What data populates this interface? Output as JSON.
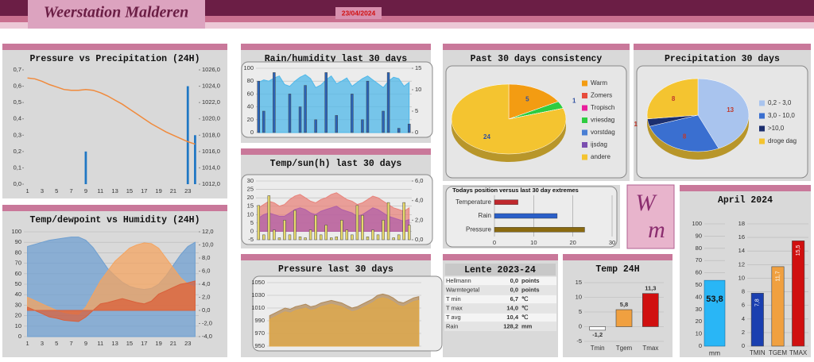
{
  "header": {
    "title": "Weerstation Malderen",
    "date": "23/04/2024"
  },
  "logo": [
    "W",
    "m"
  ],
  "table": {
    "title": "Lente 2023-24",
    "rows": [
      [
        "Hellmann",
        "0,0",
        "points"
      ],
      [
        "Warmtegetal",
        "0,0",
        "points"
      ],
      [
        "T min",
        "6,7",
        "℃"
      ],
      [
        "T max",
        "14,0",
        "℃"
      ],
      [
        "T avg",
        "10,4",
        "℃"
      ],
      [
        "Rain",
        "128,2",
        "mm"
      ]
    ]
  },
  "chart_data": [
    {
      "type": "combo",
      "title": "Pressure vs Precipitation (24H)",
      "categories": [
        1,
        null,
        3,
        null,
        5,
        null,
        7,
        null,
        9,
        null,
        11,
        null,
        13,
        null,
        15,
        null,
        17,
        null,
        19,
        null,
        21,
        null,
        23,
        null
      ],
      "series": [
        {
          "kind": "bar",
          "color": "#1f77c4",
          "values": [
            0,
            0,
            0,
            0,
            0,
            0,
            0,
            0,
            0.2,
            0,
            0,
            0,
            0,
            0,
            0,
            0,
            0,
            0,
            0,
            0,
            0,
            0,
            0.6,
            0.3
          ]
        },
        {
          "kind": "line",
          "axis": "y2",
          "color": "#f08a3c",
          "values": [
            1025.0,
            1024.9,
            1024.6,
            1024.2,
            1023.9,
            1023.6,
            1023.5,
            1023.5,
            1023.6,
            1023.5,
            1023.2,
            1022.8,
            1022.3,
            1021.8,
            1021.2,
            1020.6,
            1020.0,
            1019.4,
            1018.9,
            1018.4,
            1018.0,
            1017.6,
            1017.2,
            1016.9
          ]
        }
      ],
      "ylim": [
        0,
        0.7
      ],
      "yticks": [
        {
          "value": 0,
          "label": "0,0"
        },
        {
          "value": 0.1,
          "label": "0,1"
        },
        {
          "value": 0.2,
          "label": "0,2"
        },
        {
          "value": 0.3,
          "label": "0,3"
        },
        {
          "value": 0.4,
          "label": "0,4"
        },
        {
          "value": 0.5,
          "label": "0,5"
        },
        {
          "value": 0.6,
          "label": "0,6"
        },
        {
          "value": 0.7,
          "label": "0,7"
        }
      ],
      "y2lim": [
        1012,
        1026
      ],
      "y2ticks": [
        {
          "value": 1012,
          "label": "1012,0"
        },
        {
          "value": 1014,
          "label": "1014,0"
        },
        {
          "value": 1016,
          "label": "1016,0"
        },
        {
          "value": 1018,
          "label": "1018,0"
        },
        {
          "value": 1020,
          "label": "1020,0"
        },
        {
          "value": 1022,
          "label": "1022,0"
        },
        {
          "value": 1024,
          "label": "1024,0"
        },
        {
          "value": 1026,
          "label": "1026,0"
        }
      ],
      "grid": false
    },
    {
      "type": "combo",
      "title": "Temp/dewpoint vs Humidity (24H)",
      "categories": [
        1,
        null,
        3,
        null,
        5,
        null,
        7,
        null,
        9,
        null,
        11,
        null,
        13,
        null,
        15,
        null,
        17,
        null,
        19,
        null,
        21,
        null,
        23,
        null
      ],
      "series": [
        {
          "kind": "area",
          "color": "#6f9fd0",
          "values": [
            86,
            88,
            90,
            92,
            93,
            94,
            95,
            95,
            92,
            85,
            75,
            65,
            58,
            52,
            48,
            46,
            45,
            46,
            50,
            58,
            68,
            78,
            86,
            90
          ]
        },
        {
          "kind": "area",
          "axis": "y2",
          "color": "#f4a460",
          "values": [
            2,
            1.5,
            1,
            0.5,
            0,
            -0.3,
            -0.5,
            -0.6,
            0.5,
            2.5,
            4.5,
            6,
            7.5,
            8.5,
            9.5,
            10,
            10.3,
            10.2,
            9.5,
            8,
            6.5,
            5,
            4,
            3.5
          ]
        },
        {
          "kind": "area",
          "axis": "y2",
          "color": "#d9603b",
          "values": [
            0.5,
            0,
            -0.5,
            -1,
            -1.2,
            -1.5,
            -1.6,
            -1.7,
            -1,
            0,
            1,
            1.2,
            1.5,
            1.8,
            1.5,
            1.2,
            1,
            1.4,
            2.5,
            3,
            3.5,
            4,
            4.2,
            4.5
          ]
        }
      ],
      "ylim": [
        0,
        100
      ],
      "yticks": [
        0,
        10,
        20,
        30,
        40,
        50,
        60,
        70,
        80,
        90,
        100
      ],
      "y2lim": [
        -4,
        12
      ],
      "y2ticks": [
        {
          "value": -4,
          "label": "-4,0"
        },
        {
          "value": -2,
          "label": "-2,0"
        },
        {
          "value": 0,
          "label": "0,0"
        },
        {
          "value": 2,
          "label": "2,0"
        },
        {
          "value": 4,
          "label": "4,0"
        },
        {
          "value": 6,
          "label": "6,0"
        },
        {
          "value": 8,
          "label": "8,0"
        },
        {
          "value": 10,
          "label": "10,0"
        },
        {
          "value": 12,
          "label": "12,0"
        }
      ],
      "grid": true
    },
    {
      "type": "combo",
      "title": "Rain/humidity last 30 days",
      "series": [
        {
          "kind": "area",
          "color": "#4fb8ea",
          "values": [
            78,
            82,
            80,
            85,
            88,
            75,
            72,
            80,
            86,
            90,
            84,
            70,
            74,
            82,
            88,
            76,
            80,
            85,
            72,
            78,
            84,
            88,
            82,
            76,
            70,
            80,
            86,
            84,
            72,
            78
          ]
        },
        {
          "kind": "bar",
          "axis": "y2",
          "color": "#2a63b8",
          "values": [
            12,
            5,
            0,
            14,
            0,
            0,
            9,
            0,
            6,
            11,
            0,
            3,
            0,
            14,
            0,
            4,
            0,
            0,
            9,
            0,
            3,
            12,
            0,
            0,
            5,
            14,
            0,
            1,
            0,
            2
          ]
        }
      ],
      "ylim": [
        0,
        100
      ],
      "yticks": [
        0,
        20,
        40,
        60,
        80,
        100
      ],
      "y2lim": [
        0,
        15
      ],
      "y2ticks": [
        0,
        5,
        10,
        15
      ],
      "grid": true
    },
    {
      "type": "combo",
      "title": "Temp/sun(h) last 30 days",
      "series": [
        {
          "kind": "area",
          "color": "#e8847c",
          "values": [
            14,
            16,
            18,
            17,
            15,
            16,
            19,
            21,
            22,
            20,
            18,
            17,
            19,
            20,
            22,
            23,
            21,
            19,
            18,
            16,
            17,
            19,
            21,
            20,
            18,
            16,
            14,
            13,
            12,
            14
          ]
        },
        {
          "kind": "area",
          "color": "#b05fa8",
          "values": [
            8,
            10,
            11,
            10,
            9,
            9,
            11,
            13,
            14,
            13,
            11,
            10,
            12,
            13,
            14,
            15,
            13,
            12,
            11,
            9,
            10,
            12,
            14,
            13,
            11,
            9,
            8,
            7,
            6,
            7
          ]
        },
        {
          "kind": "bar",
          "axis": "y2",
          "color": "#e8d96b",
          "values": [
            3.5,
            0.5,
            4.5,
            1,
            0.2,
            2,
            0.5,
            3,
            0.3,
            0.2,
            1,
            2.5,
            0.5,
            1.5,
            0.2,
            0.3,
            2,
            1,
            0.5,
            3.5,
            2.5,
            0.3,
            1,
            0.5,
            2,
            3.8,
            0.2,
            0.5,
            3.8,
            1.5
          ]
        }
      ],
      "ylim": [
        -5,
        30
      ],
      "yticks": [
        -5,
        0,
        5,
        10,
        15,
        20,
        25,
        30
      ],
      "y2lim": [
        0,
        6
      ],
      "y2ticks": [
        {
          "value": 0,
          "label": "0,0"
        },
        {
          "value": 2,
          "label": "2,0"
        },
        {
          "value": 4,
          "label": "4,0"
        },
        {
          "value": 6,
          "label": "6,0"
        }
      ],
      "grid": true
    },
    {
      "type": "combo",
      "title": "Pressure last 30 days",
      "series": [
        {
          "kind": "area",
          "color": "#b08a5a",
          "values": [
            998,
            1002,
            1006,
            1010,
            1008,
            1012,
            1014,
            1016,
            1012,
            1014,
            1018,
            1020,
            1022,
            1020,
            1018,
            1014,
            1010,
            1012,
            1016,
            1020,
            1024,
            1030,
            1032,
            1030,
            1026,
            1020,
            1018,
            1022,
            1026,
            1028
          ]
        },
        {
          "kind": "area",
          "color": "#e0a848",
          "values": [
            992,
            996,
            1000,
            1004,
            1002,
            1006,
            1008,
            1010,
            1006,
            1008,
            1012,
            1014,
            1016,
            1014,
            1012,
            1008,
            1004,
            1006,
            1010,
            1014,
            1018,
            1024,
            1026,
            1024,
            1020,
            1014,
            1012,
            1016,
            1020,
            1022
          ]
        }
      ],
      "ylim": [
        950,
        1050
      ],
      "yticks": [
        950,
        970,
        990,
        1010,
        1030,
        1050
      ],
      "grid": true
    },
    {
      "type": "pie",
      "title": "Past 30 days consistency",
      "label_color": "#2f4fa0",
      "categories": [
        "Warm",
        "Zomers",
        "Tropisch",
        "vriesdag",
        "vorstdag",
        "ijsdag",
        "andere"
      ],
      "values": [
        5,
        0,
        0,
        1,
        0,
        0,
        24
      ],
      "colors": [
        "#f39c12",
        "#e74c3c",
        "#e91e9c",
        "#2ecc40",
        "#4a7fd4",
        "#7b4fb0",
        "#f4c430"
      ]
    },
    {
      "type": "pie",
      "title": "Precipitation 30 days",
      "label_color": "#c0392b",
      "categories": [
        "0,2 - 3,0",
        "3,0 - 10,0",
        ">10,0",
        "droge dag"
      ],
      "values": [
        13,
        8,
        1,
        8
      ],
      "colors": [
        "#a9c4ee",
        "#3a6fd0",
        "#1c2f6e",
        "#f4c430"
      ]
    },
    {
      "type": "hbar",
      "title": "Todays position versus last 30 day extremes",
      "categories": [
        "Temperature",
        "Rain",
        "Pressure"
      ],
      "values": [
        6,
        16,
        23
      ],
      "colors": [
        "#c0282d",
        "#2a5fc8",
        "#8a6a10"
      ],
      "xlim": [
        0,
        30
      ],
      "xticks": [
        0,
        10,
        20,
        30
      ],
      "grid": true
    },
    {
      "type": "bar",
      "title": "Temp 24H",
      "categories": [
        "Tmin",
        "Tgem",
        "Tmax"
      ],
      "values": [
        -1.2,
        5.8,
        11.3
      ],
      "value_labels": [
        "-1,2",
        "5,8",
        "11,3"
      ],
      "colors": [
        "#ffffff",
        "#f0a040",
        "#d01010"
      ],
      "ylim": [
        -5,
        15
      ],
      "yticks": [
        -5,
        0,
        5,
        10,
        15
      ],
      "grid": true
    },
    {
      "type": "gauge",
      "title": "April 2024",
      "value": 53.8,
      "value_label": "53,8",
      "unit": "mm",
      "color": "#29b6f6",
      "ylim": [
        0,
        100
      ],
      "yticks": [
        0,
        10,
        20,
        30,
        40,
        50,
        60,
        70,
        80,
        90,
        100
      ],
      "grid": true
    },
    {
      "type": "bar",
      "categories": [
        "TMIN",
        "TGEM",
        "TMAX"
      ],
      "values": [
        7.8,
        11.7,
        15.5
      ],
      "value_labels": [
        "7,8",
        "11,7",
        "15,5"
      ],
      "colors": [
        "#1a3fb0",
        "#f0a040",
        "#d01010"
      ],
      "ylim": [
        0,
        18
      ],
      "yticks": [
        0,
        2,
        4,
        6,
        8,
        10,
        12,
        14,
        16,
        18
      ],
      "grid": true
    }
  ]
}
